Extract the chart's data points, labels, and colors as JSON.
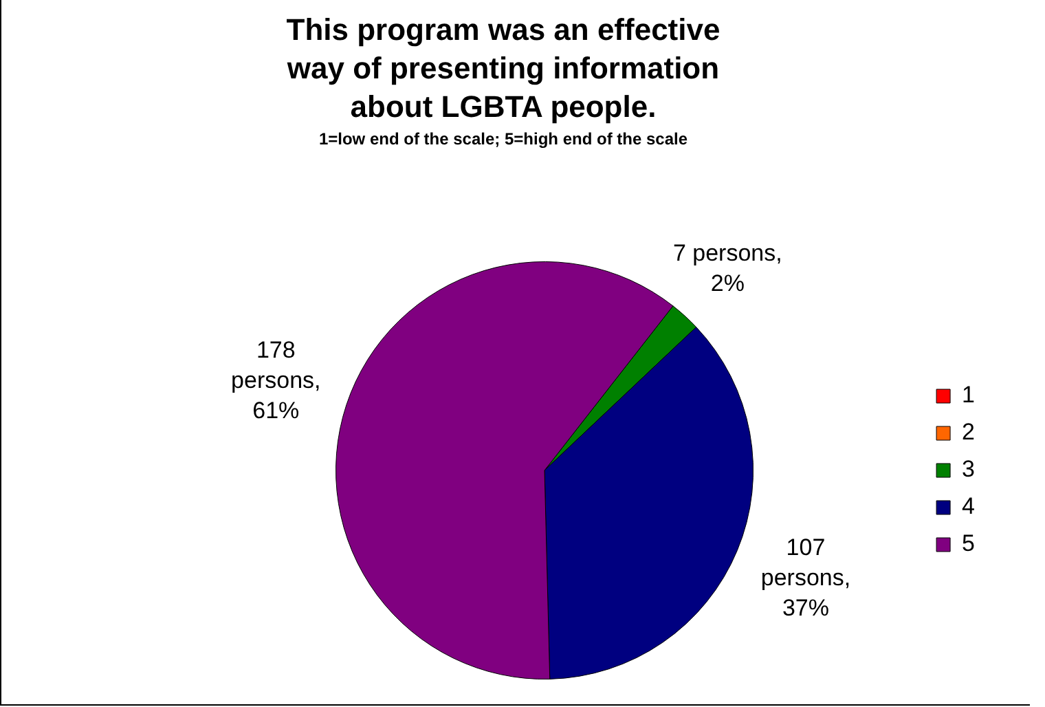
{
  "chart_data": {
    "type": "pie",
    "title": "This program was an effective way of presenting information about LGBTA people.",
    "subtitle": "1=low end of the scale; 5=high end of the scale",
    "categories": [
      "1",
      "2",
      "3",
      "4",
      "5"
    ],
    "values": [
      0,
      0,
      7,
      107,
      178
    ],
    "colors": [
      "#ff0000",
      "#ff6600",
      "#008000",
      "#000080",
      "#800080"
    ],
    "value_labels": [
      null,
      null,
      "7 persons, 2%",
      "107 persons, 37%",
      "178 persons, 61%"
    ],
    "legend": "right"
  }
}
